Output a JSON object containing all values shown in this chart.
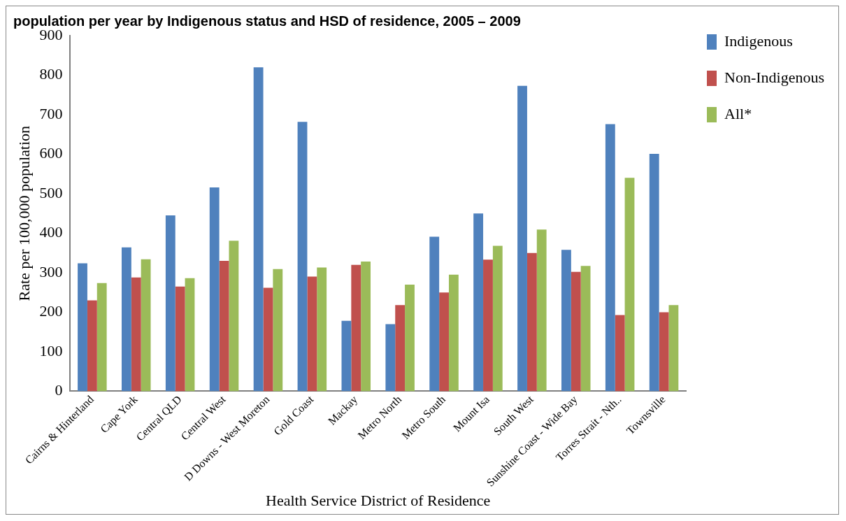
{
  "chart_data": {
    "type": "bar",
    "title": "population per year by Indigenous status and HSD of residence, 2005 – 2009",
    "xlabel": "Health Service District of Residence",
    "ylabel": "Rate per 100,000 population",
    "categories": [
      "Cairns & Hinterland",
      "Cape York",
      "Central QLD",
      "Central West",
      "D Downs - West Moreton",
      "Gold Coast",
      "Mackay",
      "Metro North",
      "Metro South",
      "Mount Isa",
      "South West",
      "Sunshine Coast - Wide Bay",
      "Torres Strait - Nth..",
      "Townsville"
    ],
    "series": [
      {
        "name": "Indigenous",
        "color": "#4f81bd",
        "values": [
          324,
          364,
          445,
          516,
          820,
          682,
          178,
          170,
          391,
          450,
          773,
          358,
          676,
          601
        ]
      },
      {
        "name": "Non-Indigenous",
        "color": "#c0504d",
        "values": [
          230,
          288,
          265,
          330,
          262,
          290,
          320,
          218,
          250,
          333,
          350,
          302,
          193,
          200
        ]
      },
      {
        "name": "All*",
        "color": "#9bbb59",
        "values": [
          274,
          334,
          286,
          381,
          309,
          313,
          328,
          270,
          295,
          368,
          409,
          317,
          540,
          218
        ]
      }
    ],
    "ylim": [
      0,
      900
    ],
    "yticks": [
      0,
      100,
      200,
      300,
      400,
      500,
      600,
      700,
      800,
      900
    ],
    "grid": false,
    "legend": "top right"
  }
}
